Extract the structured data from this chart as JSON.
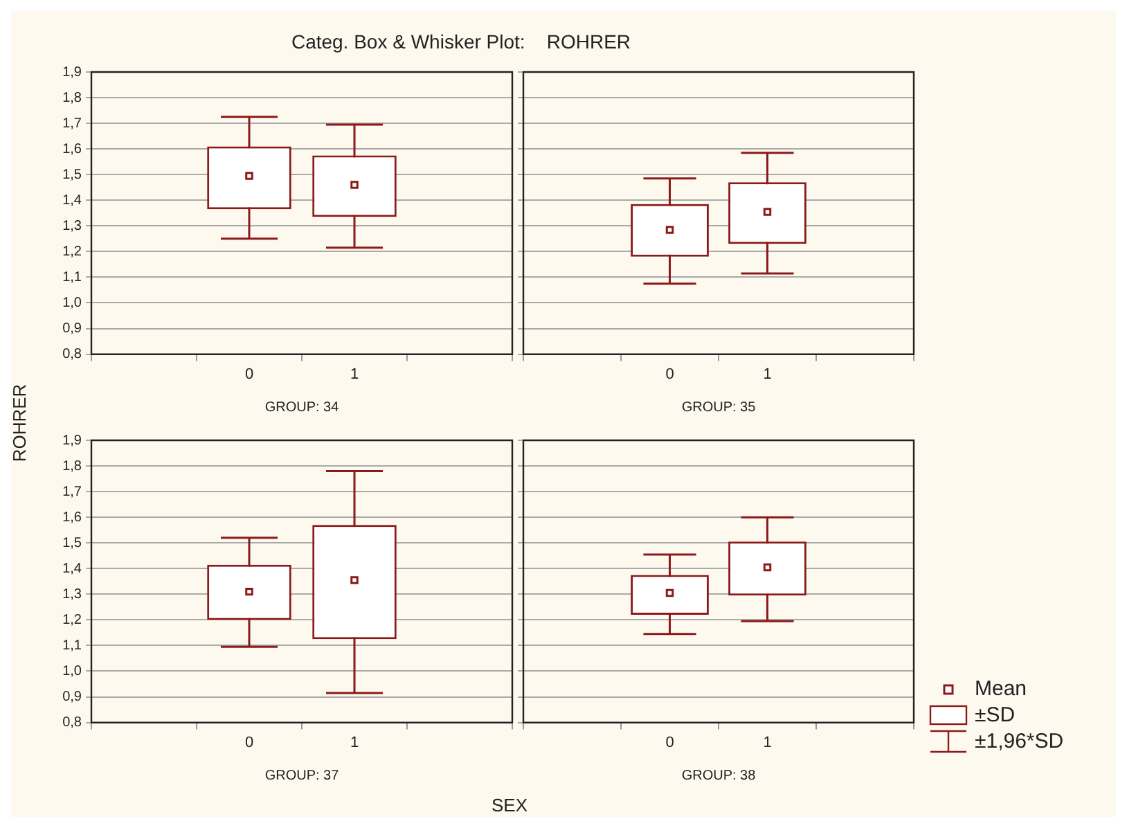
{
  "chart_data": [
    {
      "type": "box",
      "title": "Categ. Box & Whisker Plot:    ROHRER",
      "ylabel": "ROHRER",
      "annotations": [
        "SEX"
      ],
      "xlabel": "GROUP: 34",
      "categories": [
        "0",
        "1"
      ],
      "color": "#8b1a1a",
      "marker": "square",
      "grid": "y",
      "ylim": [
        0.8,
        1.9
      ],
      "yticks": [
        {
          "value": 0.8,
          "label": "0,8"
        },
        {
          "value": 0.9,
          "label": "0,9"
        },
        {
          "value": 1.0,
          "label": "1,0"
        },
        {
          "value": 1.1,
          "label": "1,1"
        },
        {
          "value": 1.2,
          "label": "1,2"
        },
        {
          "value": 1.3,
          "label": "1,3"
        },
        {
          "value": 1.4,
          "label": "1,4"
        },
        {
          "value": 1.5,
          "label": "1,5"
        },
        {
          "value": 1.6,
          "label": "1,6"
        },
        {
          "value": 1.7,
          "label": "1,7"
        },
        {
          "value": 1.8,
          "label": "1,8"
        },
        {
          "value": 1.9,
          "label": "1,9"
        }
      ],
      "boxes": [
        {
          "low": 1.25,
          "q1": 1.365,
          "q3": 1.61,
          "high": 1.725,
          "mean": 1.495
        },
        {
          "low": 1.215,
          "q1": 1.335,
          "q3": 1.575,
          "high": 1.695,
          "mean": 1.46
        }
      ]
    },
    {
      "type": "box",
      "xlabel": "GROUP: 35",
      "categories": [
        "0",
        "1"
      ],
      "color": "#8b1a1a",
      "marker": "square",
      "grid": "y",
      "tick_labels": "x",
      "ylim": [
        0.8,
        1.9
      ],
      "yticks": [
        {
          "value": 0.8,
          "label": null
        },
        {
          "value": 0.9,
          "label": null
        },
        {
          "value": 1.0,
          "label": null
        },
        {
          "value": 1.1,
          "label": null
        },
        {
          "value": 1.2,
          "label": null
        },
        {
          "value": 1.3,
          "label": null
        },
        {
          "value": 1.4,
          "label": null
        },
        {
          "value": 1.5,
          "label": null
        },
        {
          "value": 1.6,
          "label": null
        },
        {
          "value": 1.7,
          "label": null
        },
        {
          "value": 1.8,
          "label": null
        },
        {
          "value": 1.9,
          "label": null
        }
      ],
      "boxes": [
        {
          "low": 1.075,
          "q1": 1.18,
          "q3": 1.385,
          "high": 1.485,
          "mean": 1.285
        },
        {
          "low": 1.115,
          "q1": 1.23,
          "q3": 1.47,
          "high": 1.585,
          "mean": 1.355
        }
      ]
    },
    {
      "type": "box",
      "xlabel": "GROUP: 37",
      "categories": [
        "0",
        "1"
      ],
      "color": "#8b1a1a",
      "marker": "square",
      "grid": "y",
      "ylim": [
        0.8,
        1.9
      ],
      "yticks": [
        {
          "value": 0.8,
          "label": "0,8"
        },
        {
          "value": 0.9,
          "label": "0,9"
        },
        {
          "value": 1.0,
          "label": "1,0"
        },
        {
          "value": 1.1,
          "label": "1,1"
        },
        {
          "value": 1.2,
          "label": "1,2"
        },
        {
          "value": 1.3,
          "label": "1,3"
        },
        {
          "value": 1.4,
          "label": "1,4"
        },
        {
          "value": 1.5,
          "label": "1,5"
        },
        {
          "value": 1.6,
          "label": "1,6"
        },
        {
          "value": 1.7,
          "label": "1,7"
        },
        {
          "value": 1.8,
          "label": "1,8"
        },
        {
          "value": 1.9,
          "label": "1,9"
        }
      ],
      "boxes": [
        {
          "low": 1.095,
          "q1": 1.2,
          "q3": 1.415,
          "high": 1.52,
          "mean": 1.31
        },
        {
          "low": 0.915,
          "q1": 1.125,
          "q3": 1.57,
          "high": 1.78,
          "mean": 1.355
        }
      ]
    },
    {
      "type": "box",
      "xlabel": "GROUP: 38",
      "categories": [
        "0",
        "1"
      ],
      "color": "#8b1a1a",
      "marker": "square",
      "grid": "y",
      "tick_labels": "x",
      "annotations": [
        "Mean",
        "±SD",
        "±1,96*SD"
      ],
      "ylim": [
        0.8,
        1.9
      ],
      "yticks": [
        {
          "value": 0.8,
          "label": null
        },
        {
          "value": 0.9,
          "label": null
        },
        {
          "value": 1.0,
          "label": null
        },
        {
          "value": 1.1,
          "label": null
        },
        {
          "value": 1.2,
          "label": null
        },
        {
          "value": 1.3,
          "label": null
        },
        {
          "value": 1.4,
          "label": null
        },
        {
          "value": 1.5,
          "label": null
        },
        {
          "value": 1.6,
          "label": null
        },
        {
          "value": 1.7,
          "label": null
        },
        {
          "value": 1.8,
          "label": null
        },
        {
          "value": 1.9,
          "label": null
        }
      ],
      "boxes": [
        {
          "low": 1.145,
          "q1": 1.22,
          "q3": 1.375,
          "high": 1.455,
          "mean": 1.305
        },
        {
          "low": 1.195,
          "q1": 1.295,
          "q3": 1.505,
          "high": 1.6,
          "mean": 1.405
        }
      ]
    }
  ]
}
